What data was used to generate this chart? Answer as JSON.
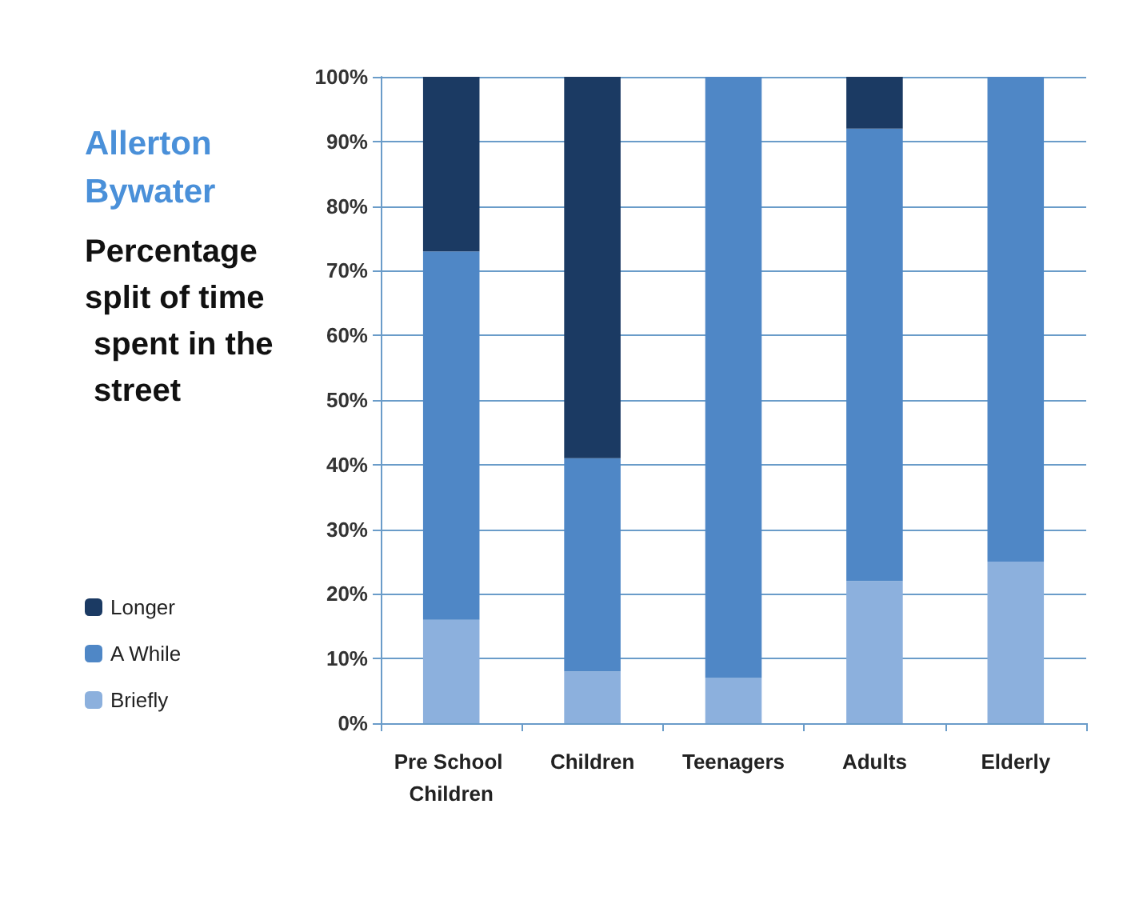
{
  "chart_data": {
    "type": "bar",
    "title": "Allerton Bywater",
    "subtitle": "Percentage split of time spent in the street",
    "categories": [
      "Pre School Children",
      "Children",
      "Teenagers",
      "Adults",
      "Elderly"
    ],
    "stacked": true,
    "series": [
      {
        "name": "Briefly",
        "color": "#8cb0dd",
        "values": [
          16,
          8,
          7,
          22,
          25
        ]
      },
      {
        "name": "A While",
        "color": "#4f87c6",
        "values": [
          57,
          33,
          93,
          70,
          75
        ]
      },
      {
        "name": "Longer",
        "color": "#1b3a63",
        "values": [
          27,
          59,
          0,
          8,
          0
        ]
      }
    ],
    "ylim": [
      0,
      100
    ],
    "yticks": [
      {
        "value": 0,
        "label": "0%"
      },
      {
        "value": 10,
        "label": "10%"
      },
      {
        "value": 20,
        "label": "20%"
      },
      {
        "value": 30,
        "label": "30%"
      },
      {
        "value": 40,
        "label": "40%"
      },
      {
        "value": 50,
        "label": "50%"
      },
      {
        "value": 60,
        "label": "60%"
      },
      {
        "value": 70,
        "label": "70%"
      },
      {
        "value": 80,
        "label": "80%"
      },
      {
        "value": 90,
        "label": "90%"
      },
      {
        "value": 100,
        "label": "100%"
      }
    ],
    "grid": "y",
    "legend": "left"
  }
}
